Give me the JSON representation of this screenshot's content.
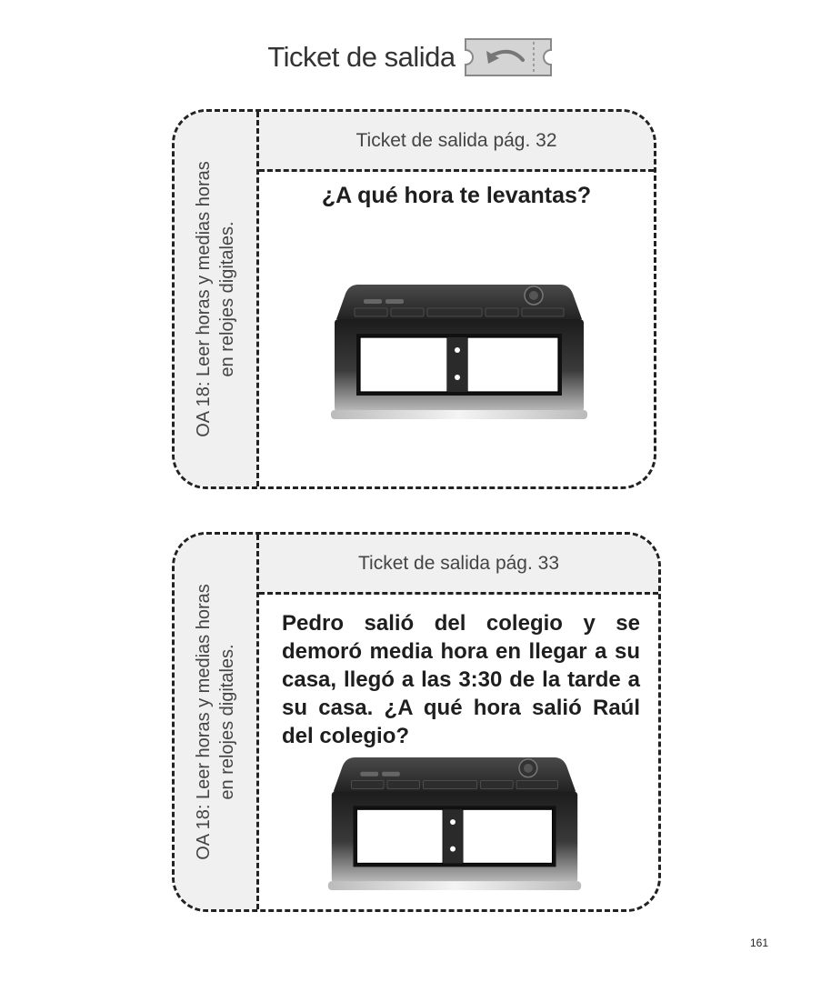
{
  "header": {
    "title": "Ticket de salida",
    "icon": "ticket-return-icon"
  },
  "cards": [
    {
      "objective": "OA 18: Leer horas y medias horas en relojes digitales.",
      "ticket_label": "Ticket de salida pág. 32",
      "question": "¿A qué hora te levantas?",
      "icon": "digital-alarm-clock-icon"
    },
    {
      "objective": "OA 18: Leer horas y medias horas en relojes digitales.",
      "ticket_label": "Ticket de salida pág. 33",
      "question": "Pedro salió del colegio y se demoró media hora en llegar a su casa, llegó a las 3:30 de la tarde a su casa. ¿A qué hora salió Raúl del colegio?",
      "icon": "digital-alarm-clock-icon"
    }
  ],
  "page_number": "161",
  "colors": {
    "border": "#222222",
    "strip_background": "#f0f0f0",
    "clock_body": "#2b2b2b",
    "clock_display": "#ffffff"
  }
}
